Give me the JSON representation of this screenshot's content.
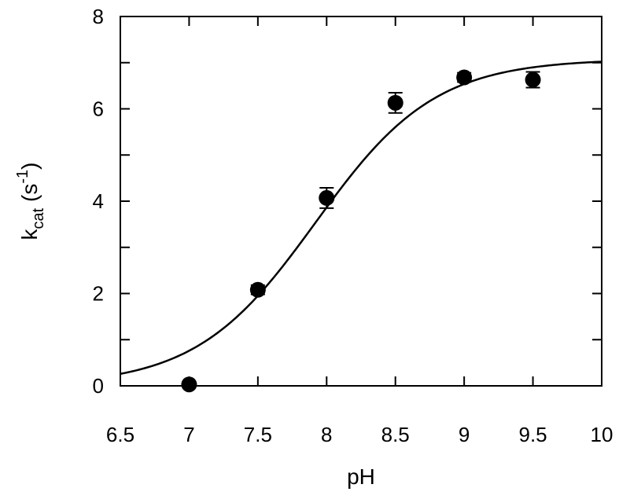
{
  "chart_data": {
    "type": "scatter",
    "xlabel": "pH",
    "ylabel": {
      "main": "k",
      "subscript": "cat",
      "unit_open": " (s",
      "superscript": "-1",
      "unit_close": ")"
    },
    "xlim": [
      6.5,
      10
    ],
    "ylim": [
      0,
      8
    ],
    "x_ticks": [
      6.5,
      7,
      7.5,
      8,
      8.5,
      9,
      9.5,
      10
    ],
    "x_tick_labels": [
      "6.5",
      "7",
      "7.5",
      "8",
      "8.5",
      "9",
      "9.5",
      "10"
    ],
    "y_ticks": [
      0,
      1,
      2,
      3,
      4,
      5,
      6,
      7,
      8
    ],
    "y_tick_labels": [
      "0",
      "",
      "2",
      "",
      "4",
      "",
      "6",
      "",
      "8"
    ],
    "grid": false,
    "legend": "none",
    "points": [
      {
        "x": 7.0,
        "y": 0.03,
        "err": 0.0
      },
      {
        "x": 7.5,
        "y": 2.08,
        "err": 0.1
      },
      {
        "x": 8.0,
        "y": 4.07,
        "err": 0.22
      },
      {
        "x": 8.5,
        "y": 6.13,
        "err": 0.22
      },
      {
        "x": 9.0,
        "y": 6.68,
        "err": 0.1
      },
      {
        "x": 9.5,
        "y": 6.63,
        "err": 0.17
      }
    ],
    "fit_curve": {
      "model": "kmax / (1 + 10^(pKa - pH))",
      "kmax": 7.08,
      "pKa": 7.92
    }
  }
}
